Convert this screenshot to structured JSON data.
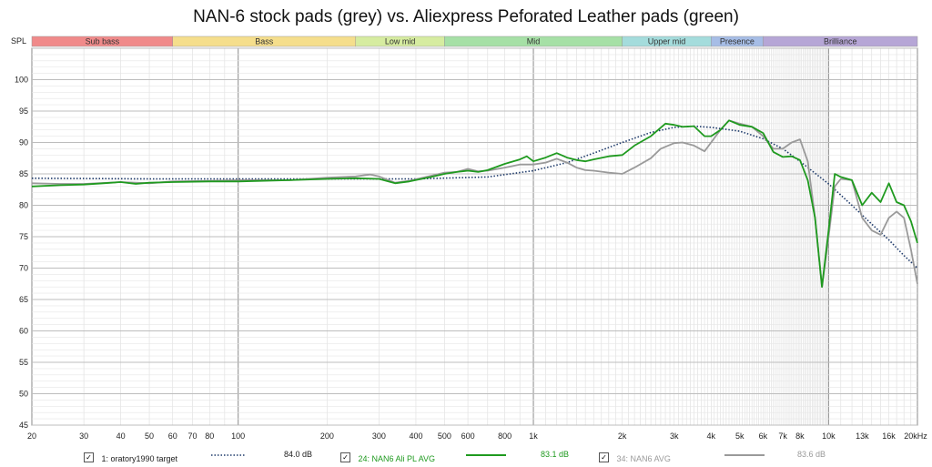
{
  "chart_data": {
    "type": "line",
    "title": "NAN-6 stock pads (grey) vs. Aliexpress Peforated Leather pads (green)",
    "ylabel": "SPL",
    "xlabel": "",
    "x_scale": "log",
    "xlim": [
      20,
      20000
    ],
    "ylim": [
      45,
      105
    ],
    "grid": true,
    "x_ticks": [
      {
        "v": 20,
        "label": "20"
      },
      {
        "v": 30,
        "label": "30"
      },
      {
        "v": 40,
        "label": "40"
      },
      {
        "v": 50,
        "label": "50"
      },
      {
        "v": 60,
        "label": "60"
      },
      {
        "v": 70,
        "label": "70"
      },
      {
        "v": 80,
        "label": "80"
      },
      {
        "v": 100,
        "label": "100"
      },
      {
        "v": 200,
        "label": "200"
      },
      {
        "v": 300,
        "label": "300"
      },
      {
        "v": 400,
        "label": "400"
      },
      {
        "v": 500,
        "label": "500"
      },
      {
        "v": 600,
        "label": "600"
      },
      {
        "v": 800,
        "label": "800"
      },
      {
        "v": 1000,
        "label": "1k"
      },
      {
        "v": 2000,
        "label": "2k"
      },
      {
        "v": 3000,
        "label": "3k"
      },
      {
        "v": 4000,
        "label": "4k"
      },
      {
        "v": 5000,
        "label": "5k"
      },
      {
        "v": 6000,
        "label": "6k"
      },
      {
        "v": 7000,
        "label": "7k"
      },
      {
        "v": 8000,
        "label": "8k"
      },
      {
        "v": 10000,
        "label": "10k"
      },
      {
        "v": 13000,
        "label": "13k"
      },
      {
        "v": 16000,
        "label": "16k"
      },
      {
        "v": 20000,
        "label": "20kHz"
      }
    ],
    "y_ticks": [
      45,
      50,
      55,
      60,
      65,
      70,
      75,
      80,
      85,
      90,
      95,
      100
    ],
    "bands": [
      {
        "name": "Sub bass",
        "from": 20,
        "to": 60,
        "color": "#f08a8a"
      },
      {
        "name": "Bass",
        "from": 60,
        "to": 250,
        "color": "#f5de8c"
      },
      {
        "name": "Low mid",
        "from": 250,
        "to": 500,
        "color": "#d6eca0"
      },
      {
        "name": "Mid",
        "from": 500,
        "to": 2000,
        "color": "#a6e0a6"
      },
      {
        "name": "Upper mid",
        "from": 2000,
        "to": 4000,
        "color": "#a4dcdc"
      },
      {
        "name": "Presence",
        "from": 4000,
        "to": 6000,
        "color": "#a6bde6"
      },
      {
        "name": "Brilliance",
        "from": 6000,
        "to": 20000,
        "color": "#b6a6d6"
      }
    ],
    "series": [
      {
        "name": "1: oratory1990 target",
        "color": "#1e3a6a",
        "style": "dotted",
        "points": [
          [
            20,
            84.3
          ],
          [
            50,
            84.2
          ],
          [
            100,
            84.2
          ],
          [
            200,
            84.2
          ],
          [
            400,
            84.2
          ],
          [
            700,
            84.5
          ],
          [
            1000,
            85.5
          ],
          [
            1300,
            86.8
          ],
          [
            1600,
            88.3
          ],
          [
            2000,
            90.0
          ],
          [
            2500,
            91.6
          ],
          [
            3000,
            92.4
          ],
          [
            3500,
            92.6
          ],
          [
            4000,
            92.4
          ],
          [
            5000,
            91.8
          ],
          [
            6000,
            90.6
          ],
          [
            7000,
            89.0
          ],
          [
            8000,
            87.0
          ],
          [
            10000,
            83.4
          ],
          [
            12000,
            80.0
          ],
          [
            14000,
            77.0
          ],
          [
            16000,
            74.5
          ],
          [
            18000,
            72.0
          ],
          [
            20000,
            70.0
          ]
        ]
      },
      {
        "name": "24: NAN6 Ali PL AVG",
        "color": "#1f9a1f",
        "style": "solid",
        "points": [
          [
            20,
            83.0
          ],
          [
            25,
            83.2
          ],
          [
            30,
            83.3
          ],
          [
            35,
            83.5
          ],
          [
            40,
            83.7
          ],
          [
            45,
            83.4
          ],
          [
            50,
            83.6
          ],
          [
            60,
            83.7
          ],
          [
            80,
            83.8
          ],
          [
            100,
            83.8
          ],
          [
            150,
            84.0
          ],
          [
            200,
            84.2
          ],
          [
            250,
            84.3
          ],
          [
            300,
            84.2
          ],
          [
            340,
            83.5
          ],
          [
            380,
            83.8
          ],
          [
            450,
            84.5
          ],
          [
            500,
            85.0
          ],
          [
            550,
            85.3
          ],
          [
            600,
            85.5
          ],
          [
            650,
            85.3
          ],
          [
            700,
            85.6
          ],
          [
            800,
            86.6
          ],
          [
            900,
            87.3
          ],
          [
            950,
            87.8
          ],
          [
            1000,
            87.0
          ],
          [
            1100,
            87.6
          ],
          [
            1200,
            88.3
          ],
          [
            1300,
            87.6
          ],
          [
            1400,
            87.2
          ],
          [
            1500,
            87.0
          ],
          [
            1600,
            87.3
          ],
          [
            1800,
            87.8
          ],
          [
            2000,
            88.0
          ],
          [
            2200,
            89.5
          ],
          [
            2500,
            91.0
          ],
          [
            2800,
            93.0
          ],
          [
            3000,
            92.8
          ],
          [
            3200,
            92.5
          ],
          [
            3500,
            92.6
          ],
          [
            3800,
            91.0
          ],
          [
            4000,
            91.0
          ],
          [
            4300,
            92.0
          ],
          [
            4600,
            93.5
          ],
          [
            5000,
            92.8
          ],
          [
            5500,
            92.5
          ],
          [
            6000,
            91.5
          ],
          [
            6500,
            88.5
          ],
          [
            7000,
            87.7
          ],
          [
            7500,
            87.8
          ],
          [
            8000,
            87.2
          ],
          [
            8500,
            84.0
          ],
          [
            9000,
            78.0
          ],
          [
            9500,
            67.0
          ],
          [
            10000,
            76.0
          ],
          [
            10500,
            85.0
          ],
          [
            11000,
            84.5
          ],
          [
            12000,
            84.0
          ],
          [
            13000,
            80.0
          ],
          [
            14000,
            82.0
          ],
          [
            15000,
            80.5
          ],
          [
            16000,
            83.5
          ],
          [
            17000,
            80.5
          ],
          [
            18000,
            80.0
          ],
          [
            19000,
            77.5
          ],
          [
            20000,
            74.0
          ]
        ]
      },
      {
        "name": "34: NAN6 AVG",
        "color": "#9a9a9a",
        "style": "solid",
        "points": [
          [
            20,
            83.5
          ],
          [
            25,
            83.4
          ],
          [
            30,
            83.4
          ],
          [
            40,
            83.7
          ],
          [
            50,
            83.5
          ],
          [
            60,
            83.8
          ],
          [
            80,
            83.9
          ],
          [
            100,
            84.0
          ],
          [
            150,
            84.0
          ],
          [
            200,
            84.4
          ],
          [
            250,
            84.6
          ],
          [
            280,
            84.9
          ],
          [
            300,
            84.6
          ],
          [
            340,
            83.6
          ],
          [
            380,
            83.9
          ],
          [
            450,
            84.7
          ],
          [
            500,
            85.2
          ],
          [
            550,
            85.3
          ],
          [
            600,
            85.8
          ],
          [
            650,
            85.4
          ],
          [
            700,
            85.5
          ],
          [
            800,
            86.0
          ],
          [
            900,
            86.5
          ],
          [
            1000,
            86.5
          ],
          [
            1100,
            86.8
          ],
          [
            1200,
            87.4
          ],
          [
            1300,
            86.8
          ],
          [
            1400,
            86.0
          ],
          [
            1500,
            85.6
          ],
          [
            1600,
            85.5
          ],
          [
            1800,
            85.2
          ],
          [
            2000,
            85.0
          ],
          [
            2200,
            86.0
          ],
          [
            2500,
            87.5
          ],
          [
            2700,
            89.0
          ],
          [
            3000,
            89.9
          ],
          [
            3200,
            90.0
          ],
          [
            3500,
            89.5
          ],
          [
            3800,
            88.6
          ],
          [
            4000,
            90.0
          ],
          [
            4300,
            92.0
          ],
          [
            4600,
            93.5
          ],
          [
            5000,
            93.0
          ],
          [
            5500,
            92.5
          ],
          [
            6000,
            91.0
          ],
          [
            6500,
            89.0
          ],
          [
            7000,
            89.0
          ],
          [
            7500,
            90.0
          ],
          [
            8000,
            90.5
          ],
          [
            8500,
            87.0
          ],
          [
            9000,
            78.0
          ],
          [
            9500,
            67.0
          ],
          [
            10000,
            75.0
          ],
          [
            10500,
            83.0
          ],
          [
            11000,
            84.2
          ],
          [
            12000,
            84.0
          ],
          [
            13000,
            78.0
          ],
          [
            14000,
            76.0
          ],
          [
            15000,
            75.3
          ],
          [
            16000,
            78.0
          ],
          [
            17000,
            79.0
          ],
          [
            18000,
            78.0
          ],
          [
            19000,
            73.0
          ],
          [
            20000,
            67.5
          ]
        ]
      }
    ]
  },
  "legend": [
    {
      "label": "1: oratory1990 target",
      "value": "84.0 dB",
      "checked": "✓"
    },
    {
      "label": "24: NAN6 Ali PL AVG",
      "value": "83.1 dB",
      "checked": "✓"
    },
    {
      "label": "34: NAN6 AVG",
      "value": "83.6 dB",
      "checked": "✓"
    }
  ]
}
